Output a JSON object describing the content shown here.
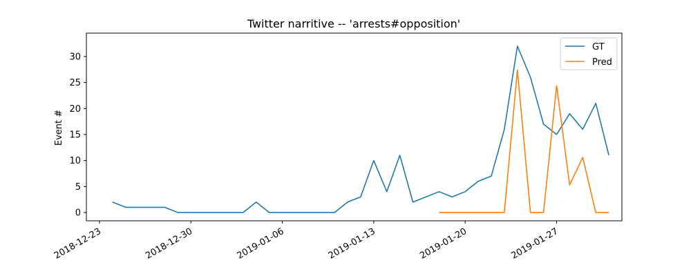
{
  "chart_data": {
    "type": "line",
    "title": "Twitter narritive -- 'arrests#opposition'",
    "xlabel": "",
    "ylabel": "Event #",
    "xlim": [
      "2018-12-22",
      "2019-02-01"
    ],
    "ylim": [
      -1.6,
      34.5
    ],
    "x_ticks": [
      "2018-12-23",
      "2018-12-30",
      "2019-01-06",
      "2019-01-13",
      "2019-01-20",
      "2019-01-27"
    ],
    "y_ticks": [
      0,
      5,
      10,
      15,
      20,
      25,
      30
    ],
    "grid": false,
    "legend_position": "top-right",
    "series": [
      {
        "name": "GT",
        "color": "#1f77b4",
        "x": [
          "2018-12-24",
          "2018-12-25",
          "2018-12-26",
          "2018-12-27",
          "2018-12-28",
          "2018-12-29",
          "2018-12-30",
          "2018-12-31",
          "2019-01-01",
          "2019-01-02",
          "2019-01-03",
          "2019-01-04",
          "2019-01-05",
          "2019-01-06",
          "2019-01-07",
          "2019-01-08",
          "2019-01-09",
          "2019-01-10",
          "2019-01-11",
          "2019-01-12",
          "2019-01-13",
          "2019-01-14",
          "2019-01-15",
          "2019-01-16",
          "2019-01-17",
          "2019-01-18",
          "2019-01-19",
          "2019-01-20",
          "2019-01-21",
          "2019-01-22",
          "2019-01-23",
          "2019-01-24",
          "2019-01-25",
          "2019-01-26",
          "2019-01-27",
          "2019-01-28",
          "2019-01-29",
          "2019-01-30",
          "2019-01-31"
        ],
        "values": [
          2,
          1,
          1,
          1,
          1,
          0,
          0,
          0,
          0,
          0,
          0,
          2,
          0,
          0,
          0,
          0,
          0,
          0,
          2,
          3,
          10,
          4,
          11,
          2,
          3,
          4,
          3,
          4,
          6,
          7,
          16,
          32,
          26,
          17,
          15,
          19,
          16,
          21,
          11
        ]
      },
      {
        "name": "Pred",
        "color": "#ff7f0e",
        "x": [
          "2019-01-18",
          "2019-01-19",
          "2019-01-20",
          "2019-01-21",
          "2019-01-22",
          "2019-01-23",
          "2019-01-24",
          "2019-01-25",
          "2019-01-26",
          "2019-01-27",
          "2019-01-28",
          "2019-01-29",
          "2019-01-30",
          "2019-01-31"
        ],
        "values": [
          0,
          0,
          0,
          0,
          0,
          0,
          27.4,
          0,
          0,
          24.4,
          5.3,
          10.6,
          0,
          0
        ]
      }
    ]
  }
}
